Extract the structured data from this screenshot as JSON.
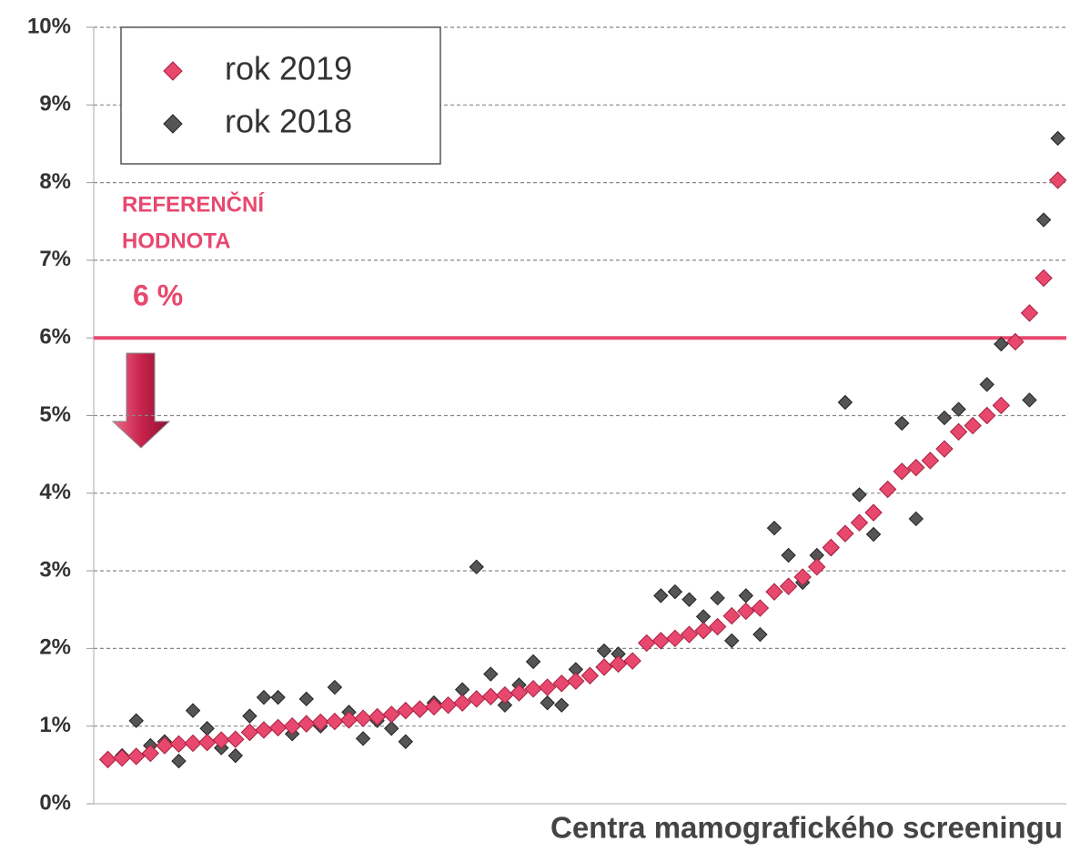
{
  "chart_data": {
    "type": "scatter",
    "x_axis_label": "Centra mamografického screeningu",
    "x": [
      1,
      2,
      3,
      4,
      5,
      6,
      7,
      8,
      9,
      10,
      11,
      12,
      13,
      14,
      15,
      16,
      17,
      18,
      19,
      20,
      21,
      22,
      23,
      24,
      25,
      26,
      27,
      28,
      29,
      30,
      31,
      32,
      33,
      34,
      35,
      36,
      37,
      38,
      39,
      40,
      41,
      42,
      43,
      44,
      45,
      46,
      47,
      48,
      49,
      50,
      51,
      52,
      53,
      54,
      55,
      56,
      57,
      58,
      59,
      60,
      61,
      62,
      63,
      64,
      65,
      66,
      67,
      68
    ],
    "xlim": [
      0,
      68.6
    ],
    "ylim": [
      0,
      10
    ],
    "yticks": [
      {
        "value": 0,
        "label": "0%"
      },
      {
        "value": 1,
        "label": "1%"
      },
      {
        "value": 2,
        "label": "2%"
      },
      {
        "value": 3,
        "label": "3%"
      },
      {
        "value": 4,
        "label": "4%"
      },
      {
        "value": 5,
        "label": "5%"
      },
      {
        "value": 6,
        "label": "6%"
      },
      {
        "value": 7,
        "label": "7%"
      },
      {
        "value": 8,
        "label": "8%"
      },
      {
        "value": 9,
        "label": "9%"
      },
      {
        "value": 10,
        "label": "10%"
      }
    ],
    "grid": true,
    "legend": "top-left",
    "series": [
      {
        "name": "rok 2019",
        "color": "#e8486e",
        "values": [
          0.57,
          0.59,
          0.61,
          0.65,
          0.75,
          0.77,
          0.78,
          0.79,
          0.82,
          0.83,
          0.92,
          0.95,
          0.98,
          1.0,
          1.03,
          1.05,
          1.06,
          1.08,
          1.1,
          1.12,
          1.15,
          1.2,
          1.22,
          1.25,
          1.27,
          1.3,
          1.35,
          1.38,
          1.4,
          1.43,
          1.48,
          1.5,
          1.55,
          1.58,
          1.65,
          1.76,
          1.8,
          1.84,
          2.07,
          2.1,
          2.13,
          2.18,
          2.23,
          2.28,
          2.42,
          2.48,
          2.52,
          2.73,
          2.8,
          2.92,
          3.05,
          3.3,
          3.48,
          3.62,
          3.75,
          4.05,
          4.28,
          4.33,
          4.42,
          4.57,
          4.79,
          4.87,
          5.0,
          5.13,
          5.95,
          6.32,
          6.77,
          8.03
        ]
      },
      {
        "name": "rok 2018",
        "color": "#555555",
        "values": [
          0.57,
          0.62,
          1.07,
          0.75,
          0.8,
          0.55,
          1.2,
          0.97,
          0.72,
          0.62,
          1.13,
          1.37,
          1.37,
          0.9,
          1.35,
          1.0,
          1.5,
          1.18,
          0.84,
          1.07,
          0.97,
          0.8,
          1.2,
          1.3,
          1.27,
          1.47,
          3.05,
          1.67,
          1.27,
          1.53,
          1.83,
          1.3,
          1.27,
          1.73,
          1.65,
          1.97,
          1.93,
          1.84,
          2.07,
          2.68,
          2.73,
          2.63,
          2.41,
          2.65,
          2.1,
          2.68,
          2.18,
          3.55,
          3.2,
          2.85,
          3.2,
          3.28,
          5.17,
          3.98,
          3.47,
          4.05,
          4.9,
          3.67,
          4.42,
          4.97,
          5.08,
          4.87,
          5.4,
          5.92,
          5.95,
          5.2,
          7.52,
          8.57
        ]
      }
    ],
    "reference": {
      "value": 6,
      "label": "6 %",
      "color": "#e8486e",
      "title": [
        "REFERENČNÍ",
        "HODNOTA"
      ]
    }
  }
}
